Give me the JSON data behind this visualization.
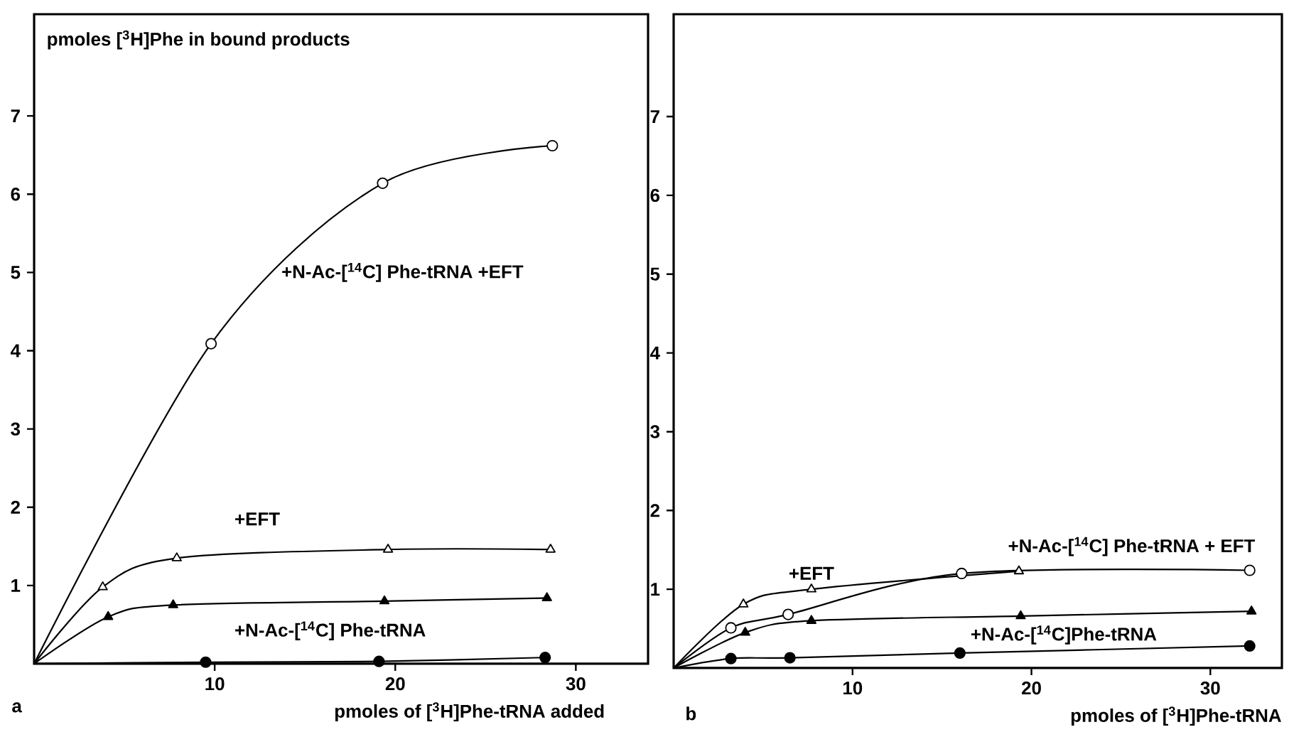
{
  "chart_data": [
    {
      "type": "line",
      "ylabel": "pmoles [$^{3}$H]Phe in bound products",
      "xlabel": "pmoles of [$^{3}$H]Phe-tRNA added",
      "annotations": [
        "a"
      ],
      "xlim": [
        0,
        34
      ],
      "ylim": [
        0,
        8.3
      ],
      "xticks": [
        10,
        20,
        30
      ],
      "yticks": [
        1,
        2,
        3,
        4,
        5,
        6,
        7
      ],
      "series": [
        {
          "name": "+N-Ac-[$^{14}$C] Phe-tRNA +EFT",
          "color": "#000000",
          "marker": "circle",
          "x": [
            0,
            9.8,
            19.3,
            28.7
          ],
          "values": [
            0,
            4.09,
            6.14,
            6.62
          ]
        },
        {
          "name": "+EFT",
          "color": "#000000",
          "marker": "triangle",
          "x": [
            0,
            3.8,
            7.9,
            19.6,
            28.6
          ],
          "values": [
            0,
            0.98,
            1.35,
            1.46,
            1.46
          ]
        },
        {
          "name": "+N-Ac-[$^{14}$C] Phe-tRNA",
          "color": "#000000",
          "marker": "triangle",
          "x": [
            0,
            4.1,
            7.7,
            19.4,
            28.4
          ],
          "values": [
            0,
            0.6,
            0.75,
            0.8,
            0.84
          ]
        },
        {
          "color": "#000000",
          "marker": "circle",
          "x": [
            0,
            9.5,
            19.1,
            28.3
          ],
          "values": [
            0,
            0.02,
            0.03,
            0.08
          ]
        }
      ]
    },
    {
      "type": "line",
      "xlabel": "pmoles of [$^{3}$H]Phe-tRNA",
      "annotations": [
        "b"
      ],
      "xlim": [
        0,
        34
      ],
      "ylim": [
        0,
        8.3
      ],
      "xticks": [
        10,
        20,
        30
      ],
      "yticks": [
        1,
        2,
        3,
        4,
        5,
        6,
        7
      ],
      "series": [
        {
          "name": "+EFT",
          "color": "#000000",
          "marker": "triangle",
          "x": [
            0,
            3.9,
            7.7,
            19.3
          ],
          "values": [
            0,
            0.81,
            1.0,
            1.23
          ]
        },
        {
          "name": "+N-Ac-[$^{14}$C] Phe-tRNA + EFT",
          "color": "#000000",
          "marker": "circle",
          "x": [
            0,
            3.2,
            6.4,
            16.1,
            32.2
          ],
          "values": [
            0,
            0.51,
            0.68,
            1.2,
            1.24
          ]
        },
        {
          "color": "#000000",
          "marker": "triangle",
          "x": [
            0,
            4.0,
            7.7,
            19.4,
            32.3
          ],
          "values": [
            0,
            0.45,
            0.6,
            0.66,
            0.72
          ]
        },
        {
          "name": "+N-Ac-[$^{14}$C]Phe-tRNA",
          "color": "#000000",
          "marker": "circle",
          "x": [
            0,
            3.2,
            6.5,
            16.0,
            32.2
          ],
          "values": [
            0,
            0.12,
            0.13,
            0.19,
            0.28
          ]
        }
      ]
    }
  ]
}
